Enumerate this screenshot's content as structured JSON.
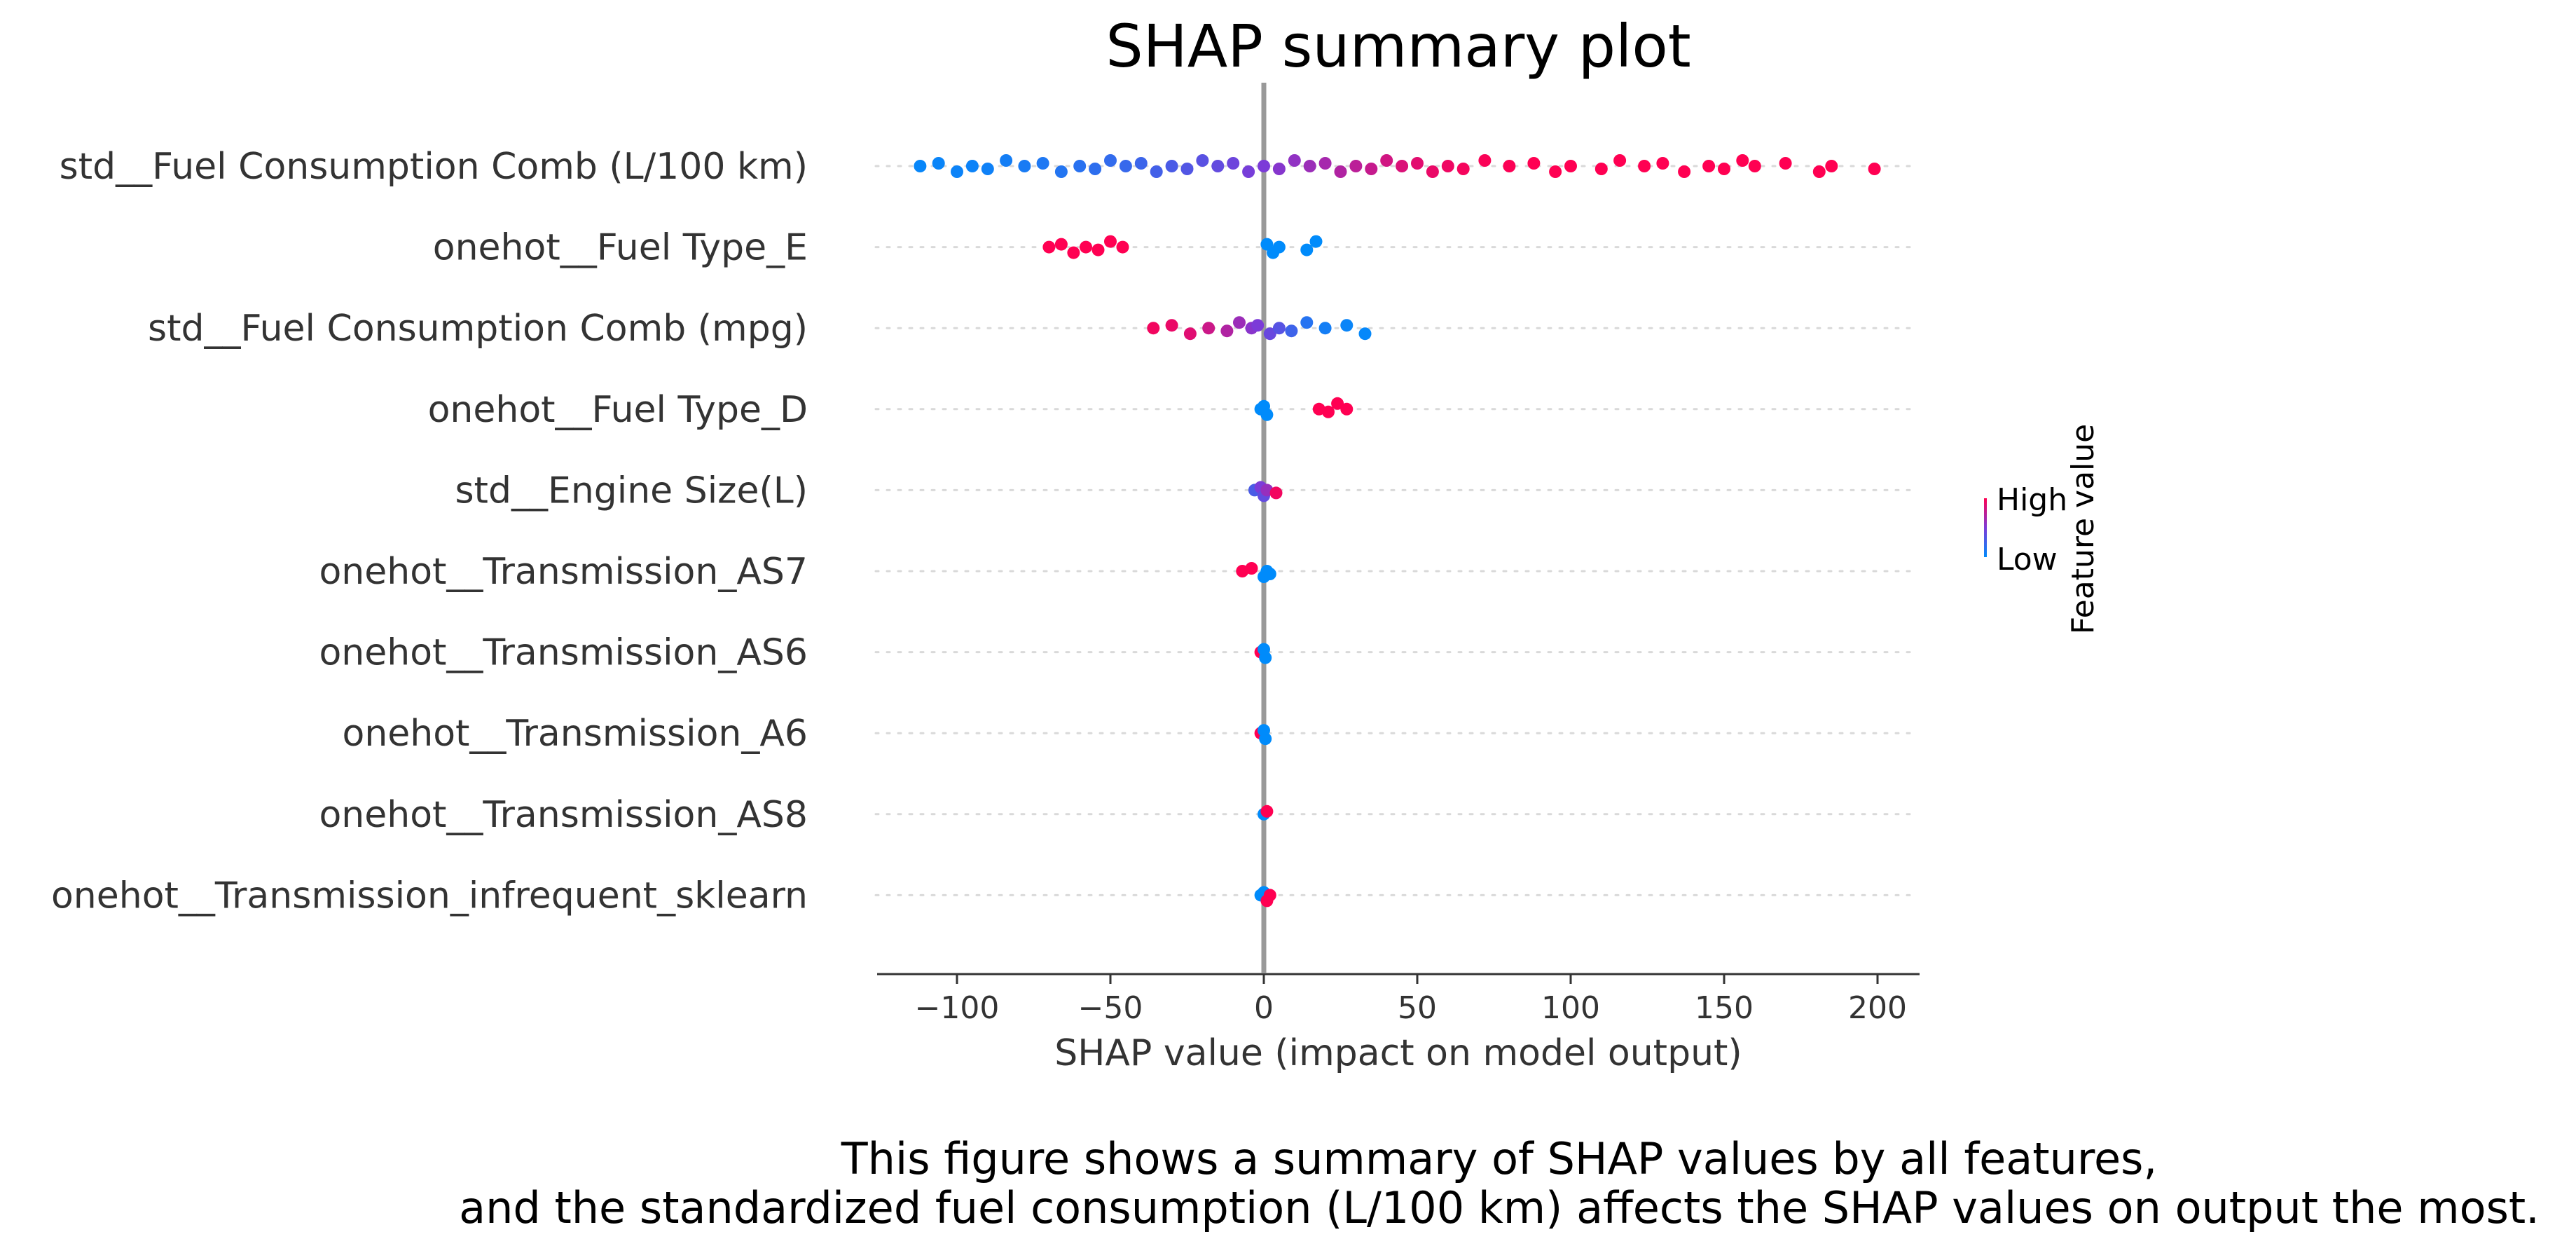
{
  "chart_data": {
    "type": "scatter",
    "subtype": "shap-beeswarm",
    "title": "SHAP summary plot",
    "xlabel": "SHAP value (impact on model output)",
    "ylabel": "",
    "xlim": [
      -126,
      215
    ],
    "x_ticks": [
      -100,
      -50,
      0,
      50,
      100,
      150,
      200
    ],
    "x_tick_labels": [
      "−100",
      "−50",
      "0",
      "50",
      "100",
      "150",
      "200"
    ],
    "grid": false,
    "zero_line": true,
    "colorbar": {
      "label": "Feature value",
      "high_label": "High",
      "low_label": "Low",
      "high_color": "#ff0052",
      "low_color": "#008bfb"
    },
    "features": [
      {
        "name": "std__Fuel Consumption Comb (L/100 km)",
        "points": [
          {
            "x": -112,
            "v": 0.03
          },
          {
            "x": -106,
            "v": 0.04
          },
          {
            "x": -100,
            "v": 0.05
          },
          {
            "x": -95,
            "v": 0.05
          },
          {
            "x": -90,
            "v": 0.06
          },
          {
            "x": -84,
            "v": 0.08
          },
          {
            "x": -78,
            "v": 0.1
          },
          {
            "x": -72,
            "v": 0.12
          },
          {
            "x": -66,
            "v": 0.14
          },
          {
            "x": -60,
            "v": 0.16
          },
          {
            "x": -55,
            "v": 0.18
          },
          {
            "x": -50,
            "v": 0.2
          },
          {
            "x": -45,
            "v": 0.22
          },
          {
            "x": -40,
            "v": 0.24
          },
          {
            "x": -35,
            "v": 0.27
          },
          {
            "x": -30,
            "v": 0.3
          },
          {
            "x": -25,
            "v": 0.33
          },
          {
            "x": -20,
            "v": 0.36
          },
          {
            "x": -15,
            "v": 0.4
          },
          {
            "x": -10,
            "v": 0.44
          },
          {
            "x": -5,
            "v": 0.48
          },
          {
            "x": 0,
            "v": 0.5
          },
          {
            "x": 5,
            "v": 0.54
          },
          {
            "x": 10,
            "v": 0.58
          },
          {
            "x": 15,
            "v": 0.62
          },
          {
            "x": 20,
            "v": 0.66
          },
          {
            "x": 25,
            "v": 0.7
          },
          {
            "x": 30,
            "v": 0.74
          },
          {
            "x": 35,
            "v": 0.78
          },
          {
            "x": 40,
            "v": 0.82
          },
          {
            "x": 45,
            "v": 0.86
          },
          {
            "x": 50,
            "v": 0.89
          },
          {
            "x": 55,
            "v": 0.92
          },
          {
            "x": 60,
            "v": 0.94
          },
          {
            "x": 65,
            "v": 0.96
          },
          {
            "x": 72,
            "v": 0.98
          },
          {
            "x": 80,
            "v": 0.99
          },
          {
            "x": 88,
            "v": 1.0
          },
          {
            "x": 95,
            "v": 1.0
          },
          {
            "x": 100,
            "v": 1.0
          },
          {
            "x": 110,
            "v": 1.0
          },
          {
            "x": 116,
            "v": 1.0
          },
          {
            "x": 124,
            "v": 1.0
          },
          {
            "x": 130,
            "v": 1.0
          },
          {
            "x": 137,
            "v": 1.0
          },
          {
            "x": 145,
            "v": 1.0
          },
          {
            "x": 150,
            "v": 1.0
          },
          {
            "x": 156,
            "v": 1.0
          },
          {
            "x": 160,
            "v": 1.0
          },
          {
            "x": 170,
            "v": 1.0
          },
          {
            "x": 181,
            "v": 1.0
          },
          {
            "x": 185,
            "v": 1.0
          },
          {
            "x": 199,
            "v": 1.0
          }
        ]
      },
      {
        "name": "onehot__Fuel Type_E",
        "points": [
          {
            "x": -70,
            "v": 1.0
          },
          {
            "x": -66,
            "v": 1.0
          },
          {
            "x": -62,
            "v": 1.0
          },
          {
            "x": -58,
            "v": 1.0
          },
          {
            "x": -54,
            "v": 1.0
          },
          {
            "x": -50,
            "v": 1.0
          },
          {
            "x": -46,
            "v": 1.0
          },
          {
            "x": 1,
            "v": 0.0
          },
          {
            "x": 3,
            "v": 0.0
          },
          {
            "x": 5,
            "v": 0.0
          },
          {
            "x": 14,
            "v": 0.0
          },
          {
            "x": 17,
            "v": 0.0
          }
        ]
      },
      {
        "name": "std__Fuel Consumption Comb (mpg)",
        "points": [
          {
            "x": -36,
            "v": 0.95
          },
          {
            "x": -30,
            "v": 0.92
          },
          {
            "x": -24,
            "v": 0.88
          },
          {
            "x": -18,
            "v": 0.8
          },
          {
            "x": -12,
            "v": 0.7
          },
          {
            "x": -8,
            "v": 0.62
          },
          {
            "x": -4,
            "v": 0.55
          },
          {
            "x": -2,
            "v": 0.5
          },
          {
            "x": 2,
            "v": 0.42
          },
          {
            "x": 5,
            "v": 0.35
          },
          {
            "x": 9,
            "v": 0.25
          },
          {
            "x": 14,
            "v": 0.15
          },
          {
            "x": 20,
            "v": 0.08
          },
          {
            "x": 27,
            "v": 0.04
          },
          {
            "x": 33,
            "v": 0.02
          }
        ]
      },
      {
        "name": "onehot__Fuel Type_D",
        "points": [
          {
            "x": -1,
            "v": 0.0
          },
          {
            "x": 0,
            "v": 0.0
          },
          {
            "x": 1,
            "v": 0.0
          },
          {
            "x": 18,
            "v": 1.0
          },
          {
            "x": 21,
            "v": 1.0
          },
          {
            "x": 24,
            "v": 1.0
          },
          {
            "x": 27,
            "v": 1.0
          }
        ]
      },
      {
        "name": "std__Engine Size(L)",
        "points": [
          {
            "x": -3,
            "v": 0.3
          },
          {
            "x": -1,
            "v": 0.5
          },
          {
            "x": 0,
            "v": 0.4
          },
          {
            "x": 1,
            "v": 0.6
          },
          {
            "x": 4,
            "v": 0.95
          }
        ]
      },
      {
        "name": "onehot__Transmission_AS7",
        "points": [
          {
            "x": -7,
            "v": 1.0
          },
          {
            "x": -4,
            "v": 1.0
          },
          {
            "x": 0,
            "v": 0.0
          },
          {
            "x": 1,
            "v": 0.0
          },
          {
            "x": 2,
            "v": 0.0
          }
        ]
      },
      {
        "name": "onehot__Transmission_AS6",
        "points": [
          {
            "x": -1,
            "v": 1.0
          },
          {
            "x": 0,
            "v": 0.0
          },
          {
            "x": 0.5,
            "v": 0.0
          }
        ]
      },
      {
        "name": "onehot__Transmission_A6",
        "points": [
          {
            "x": -1,
            "v": 1.0
          },
          {
            "x": 0,
            "v": 0.0
          },
          {
            "x": 0.5,
            "v": 0.0
          }
        ]
      },
      {
        "name": "onehot__Transmission_AS8",
        "points": [
          {
            "x": 0,
            "v": 0.0
          },
          {
            "x": 1,
            "v": 1.0
          }
        ]
      },
      {
        "name": "onehot__Transmission_infrequent_sklearn",
        "points": [
          {
            "x": -1,
            "v": 0.0
          },
          {
            "x": 0,
            "v": 0.0
          },
          {
            "x": 1,
            "v": 1.0
          },
          {
            "x": 2,
            "v": 1.0
          }
        ]
      }
    ]
  },
  "caption": {
    "line1": "This figure shows a summary of SHAP values by all features,",
    "line2": "and the standardized fuel consumption (L/100 km) affects the SHAP values on output the most."
  }
}
